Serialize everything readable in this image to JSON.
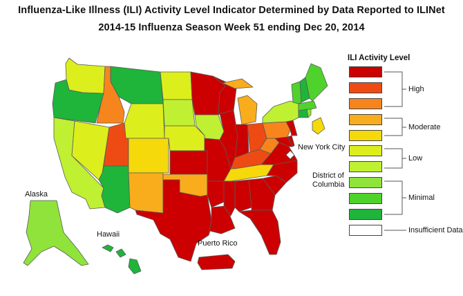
{
  "title_line1": "Influenza-Like Illness (ILI) Activity Level Indicator Determined by Data Reported to ILINet",
  "title_line2": "2014-15  Influenza Season Week  51 ending Dec 20, 2014",
  "legend": {
    "title": "ILI Activity Level",
    "levels": [
      {
        "level": 10,
        "color": "#cc0000"
      },
      {
        "level": 9,
        "color": "#ee4b14"
      },
      {
        "level": 8,
        "color": "#f7851e"
      },
      {
        "level": 7,
        "color": "#f9ac1c"
      },
      {
        "level": 6,
        "color": "#f5d90a"
      },
      {
        "level": 5,
        "color": "#dcef1c"
      },
      {
        "level": 4,
        "color": "#bff032"
      },
      {
        "level": 3,
        "color": "#8fe33a"
      },
      {
        "level": 2,
        "color": "#4fd32c"
      },
      {
        "level": 1,
        "color": "#1fb43a"
      },
      {
        "level": 0,
        "color": "#ffffff"
      }
    ],
    "group_labels": {
      "high": "High",
      "moderate": "Moderate",
      "low": "Low",
      "minimal": "Minimal",
      "insufficient": "Insufficient Data"
    }
  },
  "map_labels": {
    "alaska": "Alaska",
    "hawaii": "Hawaii",
    "puerto_rico": "Puerto Rico",
    "new_york_city": "New York City",
    "dc_line1": "District of",
    "dc_line2": "Columbia"
  },
  "states": [
    {
      "name": "Washington",
      "level": 5
    },
    {
      "name": "Oregon",
      "level": 1
    },
    {
      "name": "California",
      "level": 4
    },
    {
      "name": "Nevada",
      "level": 5
    },
    {
      "name": "Idaho",
      "level": 8
    },
    {
      "name": "Montana",
      "level": 1
    },
    {
      "name": "Wyoming",
      "level": 5
    },
    {
      "name": "Utah",
      "level": 9
    },
    {
      "name": "Arizona",
      "level": 1
    },
    {
      "name": "Colorado",
      "level": 6
    },
    {
      "name": "New Mexico",
      "level": 7
    },
    {
      "name": "North Dakota",
      "level": 5
    },
    {
      "name": "South Dakota",
      "level": 4
    },
    {
      "name": "Nebraska",
      "level": 5
    },
    {
      "name": "Kansas",
      "level": 10
    },
    {
      "name": "Oklahoma",
      "level": 7
    },
    {
      "name": "Texas",
      "level": 10
    },
    {
      "name": "Minnesota",
      "level": 10
    },
    {
      "name": "Iowa",
      "level": 4
    },
    {
      "name": "Missouri",
      "level": 10
    },
    {
      "name": "Arkansas",
      "level": 10
    },
    {
      "name": "Louisiana",
      "level": 10
    },
    {
      "name": "Wisconsin",
      "level": 10
    },
    {
      "name": "Illinois",
      "level": 10
    },
    {
      "name": "Michigan",
      "level": 7
    },
    {
      "name": "Indiana",
      "level": 10
    },
    {
      "name": "Ohio",
      "level": 9
    },
    {
      "name": "Kentucky",
      "level": 9
    },
    {
      "name": "Tennessee",
      "level": 6
    },
    {
      "name": "Mississippi",
      "level": 10
    },
    {
      "name": "Alabama",
      "level": 10
    },
    {
      "name": "Georgia",
      "level": 10
    },
    {
      "name": "Florida",
      "level": 10
    },
    {
      "name": "South Carolina",
      "level": 10
    },
    {
      "name": "North Carolina",
      "level": 10
    },
    {
      "name": "Virginia",
      "level": 10
    },
    {
      "name": "West Virginia",
      "level": 8
    },
    {
      "name": "Maryland",
      "level": 10
    },
    {
      "name": "Delaware",
      "level": 10
    },
    {
      "name": "Pennsylvania",
      "level": 8
    },
    {
      "name": "New Jersey",
      "level": 10
    },
    {
      "name": "New York",
      "level": 4
    },
    {
      "name": "Connecticut",
      "level": 1
    },
    {
      "name": "Rhode Island",
      "level": 3
    },
    {
      "name": "Massachusetts",
      "level": 2
    },
    {
      "name": "Vermont",
      "level": 2
    },
    {
      "name": "New Hampshire",
      "level": 1
    },
    {
      "name": "Maine",
      "level": 2
    },
    {
      "name": "Alaska",
      "level": 3
    },
    {
      "name": "Hawaii",
      "level": 1
    },
    {
      "name": "Puerto Rico",
      "level": 10
    },
    {
      "name": "New York City",
      "level": 6
    },
    {
      "name": "District of Columbia",
      "level": 0
    }
  ]
}
